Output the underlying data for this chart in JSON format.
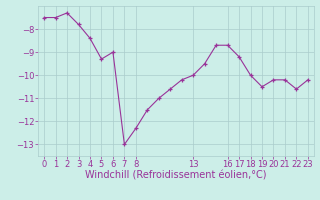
{
  "x": [
    0,
    1,
    2,
    3,
    4,
    5,
    6,
    7,
    8,
    9,
    10,
    11,
    12,
    13,
    14,
    15,
    16,
    17,
    18,
    19,
    20,
    21,
    22,
    23
  ],
  "y": [
    -7.5,
    -7.5,
    -7.3,
    -7.8,
    -8.4,
    -9.3,
    -9.0,
    -13.0,
    -12.3,
    -11.5,
    -11.0,
    -10.6,
    -10.2,
    -10.0,
    -9.5,
    -8.7,
    -8.7,
    -9.2,
    -10.0,
    -10.5,
    -10.2,
    -10.2,
    -10.6,
    -10.2
  ],
  "line_color": "#993399",
  "marker": "+",
  "bg_color": "#cceee8",
  "grid_color": "#aacccc",
  "xlabel": "Windchill (Refroidissement éolien,°C)",
  "xlabel_color": "#993399",
  "tick_color": "#993399",
  "ylim": [
    -13.5,
    -7.0
  ],
  "xlim": [
    -0.5,
    23.5
  ],
  "yticks": [
    -13,
    -12,
    -11,
    -10,
    -9,
    -8
  ],
  "xtick_positions": [
    0,
    1,
    2,
    3,
    4,
    5,
    6,
    7,
    8,
    13,
    16,
    17,
    18,
    19,
    20,
    21,
    22,
    23
  ],
  "xtick_labels": [
    "0",
    "1",
    "2",
    "3",
    "4",
    "5",
    "6",
    "7",
    "8",
    "13",
    "16",
    "17",
    "18",
    "19",
    "20",
    "21",
    "22",
    "23"
  ],
  "tick_fontsize": 6,
  "ylabel_fontsize": 6,
  "xlabel_fontsize": 7
}
